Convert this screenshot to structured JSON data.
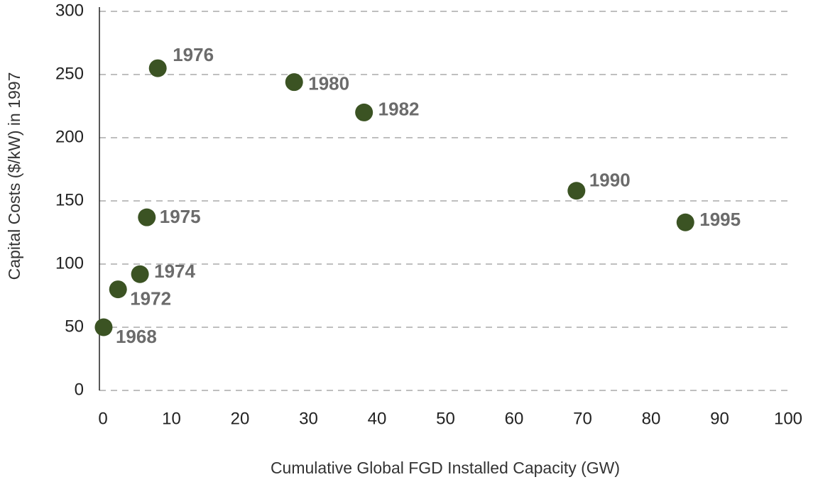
{
  "chart_data": {
    "type": "scatter",
    "x_label": "Cumulative Global FGD Installed Capacity (GW)",
    "y_label": "Capital Costs ($/kW) in 1997",
    "labels": [
      "1968",
      "1972",
      "1974",
      "1975",
      "1976",
      "1980",
      "1982",
      "1990",
      "1995"
    ],
    "x": [
      0.1,
      2.2,
      5.4,
      6.4,
      8.0,
      27.9,
      38.1,
      69.1,
      85.0
    ],
    "values": [
      50,
      80,
      92,
      137,
      255,
      244,
      220,
      158,
      133
    ],
    "color": "#3b5323",
    "xlim": [
      0,
      100
    ],
    "xticks": [
      0,
      10,
      20,
      30,
      40,
      50,
      60,
      70,
      80,
      90,
      100
    ],
    "ylim": [
      0,
      300
    ],
    "yticks": [
      0,
      50,
      100,
      150,
      200,
      250,
      300
    ],
    "grid": true
  }
}
